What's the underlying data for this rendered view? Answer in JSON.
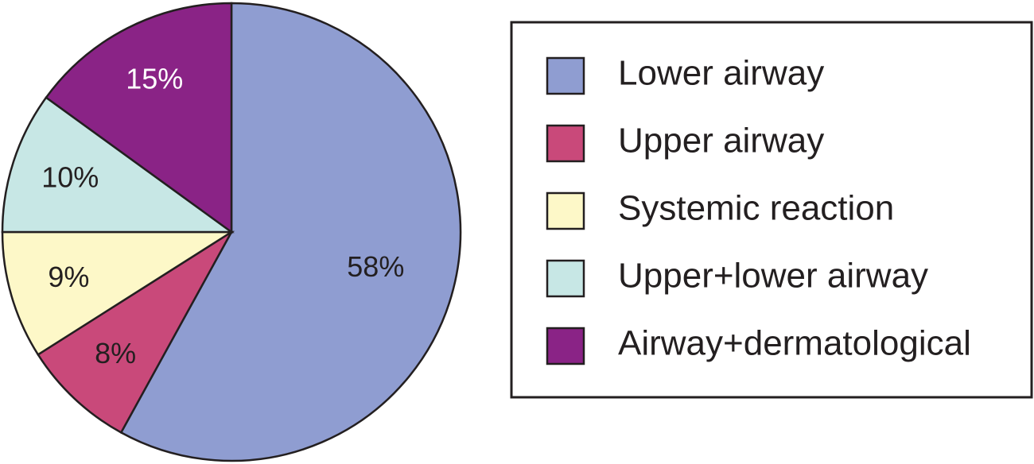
{
  "chart_data": {
    "type": "pie",
    "categories": [
      "Lower airway",
      "Upper airway",
      "Systemic reaction",
      "Upper+lower airway",
      "Airway+dermatological"
    ],
    "values": [
      58,
      8,
      9,
      10,
      15
    ],
    "value_labels": [
      "58%",
      "8%",
      "9%",
      "10%",
      "15%"
    ],
    "colors": [
      "#8f9dd1",
      "#c9497a",
      "#fdf8c8",
      "#c7e7e5",
      "#8a2386"
    ],
    "label_colors": [
      "#231f20",
      "#231f20",
      "#231f20",
      "#231f20",
      "#ffffff"
    ],
    "legend": "right"
  }
}
